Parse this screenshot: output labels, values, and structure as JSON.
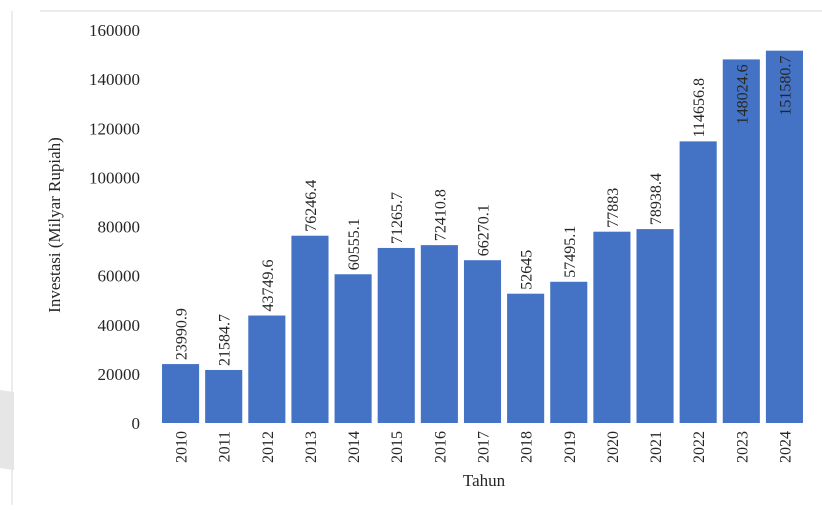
{
  "chart_data": {
    "type": "bar",
    "xlabel": "Tahun",
    "ylabel": "Investasi (Milyar Rupiah)",
    "ylim": [
      0,
      160000
    ],
    "yticks": [
      0,
      20000,
      40000,
      60000,
      80000,
      100000,
      120000,
      140000,
      160000
    ],
    "grid": false,
    "bar_color": "#4472c4",
    "categories": [
      "2010",
      "2011",
      "2012",
      "2013",
      "2014",
      "2015",
      "2016",
      "2017",
      "2018",
      "2019",
      "2020",
      "2021",
      "2022",
      "2023",
      "2024"
    ],
    "values": [
      23990.9,
      21584.7,
      43749.6,
      76246.4,
      60555.1,
      71265.7,
      72410.8,
      66270.1,
      52645,
      57495.1,
      77883,
      78938.4,
      114656.8,
      148024.6,
      151580.7
    ],
    "data_labels": [
      "23990.9",
      "21584.7",
      "43749.6",
      "76246.4",
      "60555.1",
      "71265.7",
      "72410.8",
      "66270.1",
      "52645",
      "57495.1",
      "77883",
      "78938.4",
      "114656.8",
      "148024.6",
      "151580.7"
    ]
  }
}
